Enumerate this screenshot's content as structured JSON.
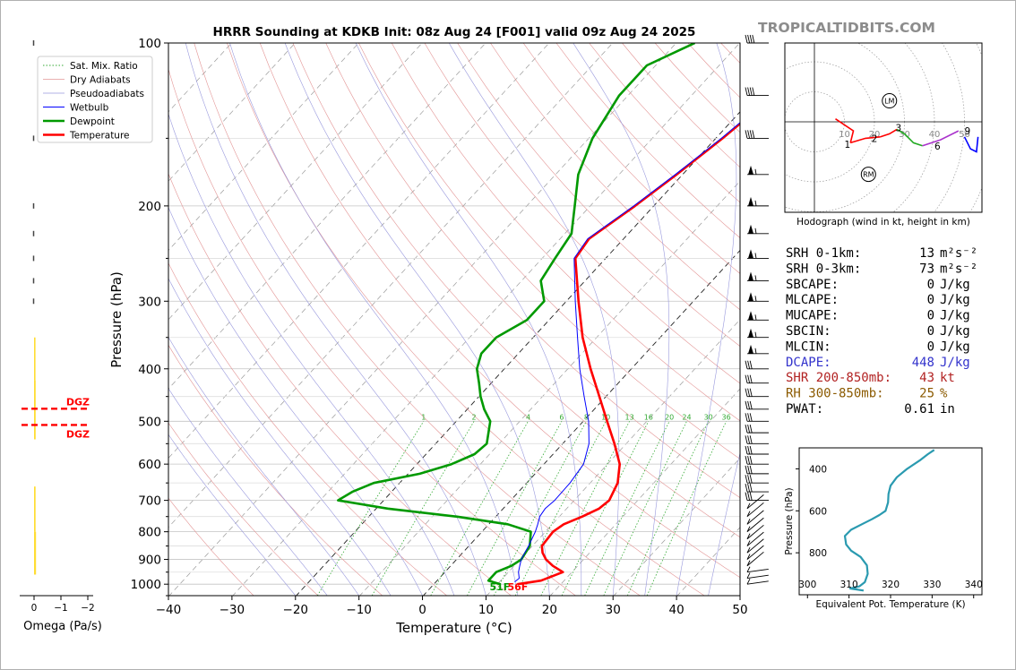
{
  "chart_data": [
    {
      "type": "line",
      "subtype": "skew-t log-p sounding",
      "title": "HRRR Sounding at KDKB Init: 08z Aug 24 [F001] valid 09z Aug 24 2025",
      "xlabel": "Temperature (°C)",
      "ylabel": "Pressure (hPa)",
      "xlim": [
        -40,
        50
      ],
      "ylim": [
        1050,
        100
      ],
      "yscale": "log",
      "xticks": [
        "−40",
        "−30",
        "−20",
        "−10",
        "0",
        "10",
        "20",
        "30",
        "40",
        "50"
      ],
      "yticks": [
        "100",
        "200",
        "300",
        "400",
        "500",
        "600",
        "700",
        "800",
        "900",
        "1000"
      ],
      "legend_position": "top-left",
      "legend": [
        "Sat. Mix. Ratio",
        "Dry Adiabats",
        "Pseudoadiabats",
        "Wetbulb",
        "Dewpoint",
        "Temperature"
      ],
      "mixing_ratio_labels": [
        "1",
        "2",
        "4",
        "6",
        "8",
        "10",
        "13",
        "16",
        "20",
        "24",
        "30",
        "36"
      ],
      "surface_dewpoint_label": "51F",
      "surface_temperature_label": "56F",
      "series": [
        {
          "name": "Temperature",
          "color": "#ff0000",
          "points": [
            [
              1000,
              13.3
            ],
            [
              985,
              16.5
            ],
            [
              950,
              18.7
            ],
            [
              925,
              16.2
            ],
            [
              900,
              14.2
            ],
            [
              875,
              12.7
            ],
            [
              850,
              11.6
            ],
            [
              800,
              11.3
            ],
            [
              775,
              11.9
            ],
            [
              750,
              13.7
            ],
            [
              725,
              15.2
            ],
            [
              700,
              15.6
            ],
            [
              650,
              14.4
            ],
            [
              600,
              12.0
            ],
            [
              550,
              8.2
            ],
            [
              500,
              3.8
            ],
            [
              450,
              -1.0
            ],
            [
              400,
              -6.4
            ],
            [
              350,
              -12.2
            ],
            [
              300,
              -18.1
            ],
            [
              250,
              -24.8
            ],
            [
              230,
              -25.5
            ],
            [
              200,
              -23.0
            ],
            [
              175,
              -21.0
            ],
            [
              150,
              -19.0
            ],
            [
              125,
              -17.2
            ],
            [
              100,
              -14.7
            ]
          ]
        },
        {
          "name": "Dewpoint",
          "color": "#009900",
          "points": [
            [
              1000,
              10.6
            ],
            [
              985,
              8.2
            ],
            [
              950,
              8.2
            ],
            [
              925,
              9.7
            ],
            [
              900,
              10.3
            ],
            [
              850,
              9.7
            ],
            [
              800,
              7.8
            ],
            [
              775,
              3.1
            ],
            [
              750,
              -6.1
            ],
            [
              725,
              -18.1
            ],
            [
              700,
              -27.1
            ],
            [
              675,
              -26.1
            ],
            [
              650,
              -24.0
            ],
            [
              625,
              -18.1
            ],
            [
              600,
              -14.5
            ],
            [
              575,
              -12.3
            ],
            [
              550,
              -11.9
            ],
            [
              500,
              -14.6
            ],
            [
              475,
              -17.3
            ],
            [
              450,
              -19.7
            ],
            [
              425,
              -21.9
            ],
            [
              400,
              -24.3
            ],
            [
              375,
              -25.8
            ],
            [
              350,
              -25.8
            ],
            [
              325,
              -23.5
            ],
            [
              300,
              -23.5
            ],
            [
              275,
              -27.0
            ],
            [
              250,
              -28.0
            ],
            [
              225,
              -29.0
            ],
            [
              200,
              -32.5
            ],
            [
              175,
              -36.5
            ],
            [
              150,
              -39.5
            ],
            [
              125,
              -41.5
            ],
            [
              110,
              -41.5
            ],
            [
              100,
              -37.2
            ]
          ]
        },
        {
          "name": "Wetbulb",
          "color": "#0000ff",
          "points": [
            [
              990,
              12.5
            ],
            [
              975,
              12.7
            ],
            [
              950,
              11.7
            ],
            [
              925,
              11.0
            ],
            [
              900,
              10.3
            ],
            [
              875,
              9.9
            ],
            [
              850,
              9.5
            ],
            [
              800,
              8.5
            ],
            [
              775,
              7.8
            ],
            [
              750,
              7.0
            ],
            [
              725,
              6.7
            ],
            [
              700,
              7.0
            ],
            [
              650,
              6.9
            ],
            [
              600,
              6.3
            ],
            [
              550,
              4.2
            ],
            [
              500,
              0.9
            ],
            [
              450,
              -3.4
            ],
            [
              400,
              -8.1
            ],
            [
              350,
              -13.0
            ],
            [
              300,
              -18.6
            ],
            [
              250,
              -25.0
            ],
            [
              230,
              -25.7
            ],
            [
              200,
              -23.2
            ],
            [
              175,
              -21.2
            ],
            [
              150,
              -19.2
            ],
            [
              125,
              -17.4
            ],
            [
              100,
              -14.7
            ]
          ]
        }
      ],
      "wind_barbs_pressures_hpa": [
        100,
        125,
        150,
        175,
        200,
        225,
        250,
        275,
        300,
        325,
        350,
        375,
        400,
        425,
        450,
        475,
        500,
        525,
        550,
        575,
        600,
        625,
        650,
        675,
        700,
        725,
        750,
        775,
        800,
        825,
        850,
        875,
        900,
        925,
        950,
        975,
        1000
      ]
    },
    {
      "type": "line",
      "title": "",
      "xlabel": "Omega (Pa/s)",
      "xticks": [
        "0",
        "−1",
        "−2"
      ],
      "dgz_label": "DGZ",
      "dgz_pressures_hpa": [
        474,
        508
      ]
    },
    {
      "type": "line",
      "title": "Hodograph (wind in kt, height in km)",
      "ring_labels": [
        "10",
        "20",
        "30",
        "40",
        "50"
      ],
      "height_labels": [
        "1",
        "2",
        "3",
        "6",
        "9"
      ],
      "storm_motion_labels": [
        "LM",
        "RM"
      ]
    },
    {
      "type": "line",
      "title": "",
      "xlabel": "Equivalent Pot. Temperature (K)",
      "ylabel": "Pressure (hPa)",
      "xlim": [
        298,
        342
      ],
      "ylim": [
        1000,
        300
      ],
      "xticks": [
        "300",
        "310",
        "320",
        "330",
        "340"
      ],
      "yticks": [
        "400",
        "600",
        "800"
      ],
      "series": [
        {
          "name": "Theta-E",
          "color": "#2a9ab0",
          "points": [
            [
              980,
              313.5
            ],
            [
              970,
              310.3
            ],
            [
              960,
              312.5
            ],
            [
              940,
              313.8
            ],
            [
              900,
              314.5
            ],
            [
              860,
              314.3
            ],
            [
              820,
              312.8
            ],
            [
              790,
              310.5
            ],
            [
              760,
              309.3
            ],
            [
              720,
              309.0
            ],
            [
              690,
              310.5
            ],
            [
              660,
              313.5
            ],
            [
              640,
              315.5
            ],
            [
              620,
              317.3
            ],
            [
              600,
              318.8
            ],
            [
              560,
              319.4
            ],
            [
              520,
              319.5
            ],
            [
              480,
              320.0
            ],
            [
              440,
              321.5
            ],
            [
              400,
              324.0
            ],
            [
              360,
              327.0
            ],
            [
              330,
              329.0
            ],
            [
              310,
              330.5
            ]
          ]
        }
      ]
    }
  ],
  "watermark": "TROPICALTIDBITS.COM",
  "indices": [
    {
      "label": "SRH 0-1km:",
      "value": "13 m²s⁻²",
      "color": "#000000"
    },
    {
      "label": "SRH 0-3km:",
      "value": "73 m²s⁻²",
      "color": "#000000"
    },
    {
      "label": "SBCAPE:",
      "value": "0 J/kg",
      "color": "#000000"
    },
    {
      "label": "MLCAPE:",
      "value": "0 J/kg",
      "color": "#000000"
    },
    {
      "label": "MUCAPE:",
      "value": "0 J/kg",
      "color": "#000000"
    },
    {
      "label": "SBCIN:",
      "value": "0 J/kg",
      "color": "#000000"
    },
    {
      "label": "MLCIN:",
      "value": "0 J/kg",
      "color": "#000000"
    },
    {
      "label": "DCAPE:",
      "value": "448 J/kg",
      "color": "#3333cc"
    },
    {
      "label": "SHR 200-850mb:",
      "value": "43 kt",
      "color": "#b22222"
    },
    {
      "label": "RH 300-850mb:",
      "value": "25 %",
      "color": "#8b5a00"
    },
    {
      "label": "PWAT:",
      "value": "0.61 in",
      "color": "#000000"
    }
  ]
}
